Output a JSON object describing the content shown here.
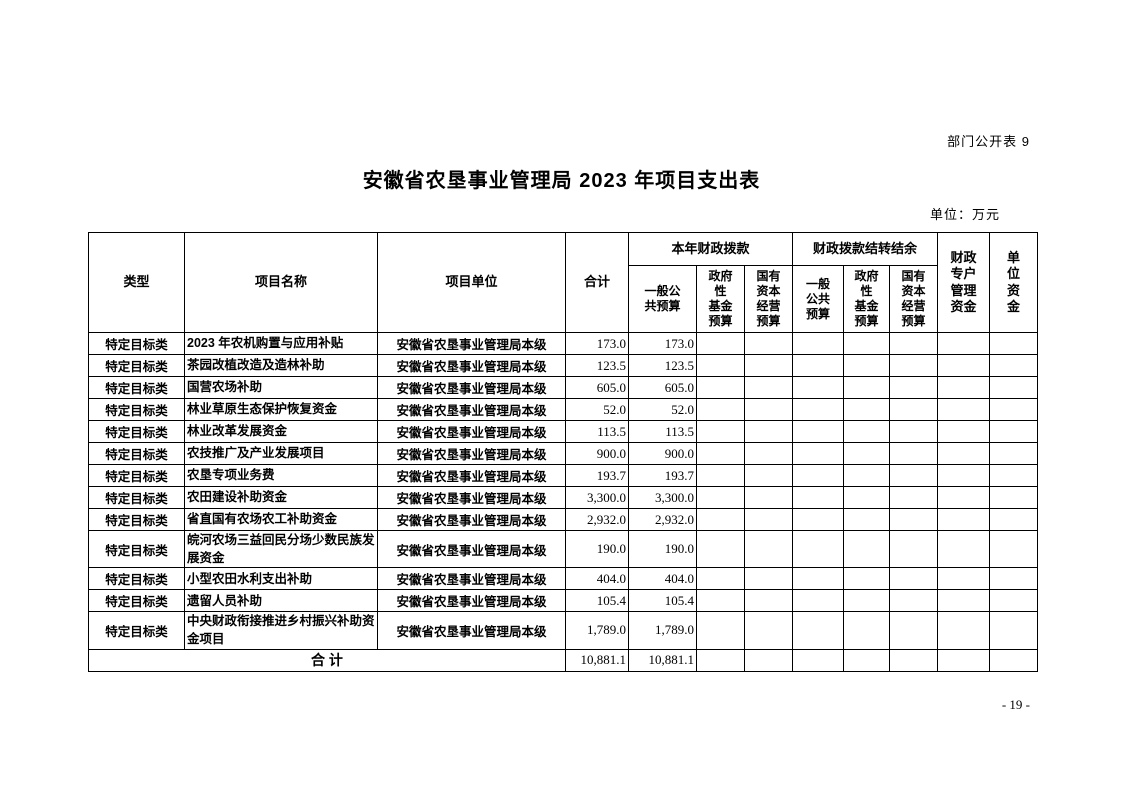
{
  "page": {
    "corner_label": "部门公开表 9",
    "title": "安徽省农垦事业管理局 2023 年项目支出表",
    "unit_note": "单位：万元",
    "page_number": "- 19 -"
  },
  "table": {
    "headers": {
      "type": "类型",
      "project_name": "项目名称",
      "project_unit": "项目单位",
      "total": "合计",
      "current_year_group": "本年财政拨款",
      "carryover_group": "财政拨款结转结余",
      "cy_general": "一般公\n共预算",
      "cy_gov_fund": "政府\n性\n基金\n预算",
      "cy_state_capital": "国有\n资本\n经营\n预算",
      "co_general": "一般\n公共\n预算",
      "co_gov_fund": "政府\n性\n基金\n预算",
      "co_state_capital": "国有\n资本\n经营\n预算",
      "special_account": "财政\n专户\n管理\n资金",
      "unit_funds": "单\n位\n资\n金"
    },
    "rows": [
      {
        "type": "特定目标类",
        "name": "2023 年农机购置与应用补贴",
        "unit": "安徽省农垦事业管理局本级",
        "total": "173.0",
        "cy_general": "173.0",
        "cy_gov_fund": "",
        "cy_state_capital": "",
        "co_general": "",
        "co_gov_fund": "",
        "co_state_capital": "",
        "special_account": "",
        "unit_funds": ""
      },
      {
        "type": "特定目标类",
        "name": "茶园改植改造及造林补助",
        "unit": "安徽省农垦事业管理局本级",
        "total": "123.5",
        "cy_general": "123.5",
        "cy_gov_fund": "",
        "cy_state_capital": "",
        "co_general": "",
        "co_gov_fund": "",
        "co_state_capital": "",
        "special_account": "",
        "unit_funds": ""
      },
      {
        "type": "特定目标类",
        "name": "国营农场补助",
        "unit": "安徽省农垦事业管理局本级",
        "total": "605.0",
        "cy_general": "605.0",
        "cy_gov_fund": "",
        "cy_state_capital": "",
        "co_general": "",
        "co_gov_fund": "",
        "co_state_capital": "",
        "special_account": "",
        "unit_funds": ""
      },
      {
        "type": "特定目标类",
        "name": "林业草原生态保护恢复资金",
        "unit": "安徽省农垦事业管理局本级",
        "total": "52.0",
        "cy_general": "52.0",
        "cy_gov_fund": "",
        "cy_state_capital": "",
        "co_general": "",
        "co_gov_fund": "",
        "co_state_capital": "",
        "special_account": "",
        "unit_funds": ""
      },
      {
        "type": "特定目标类",
        "name": "林业改革发展资金",
        "unit": "安徽省农垦事业管理局本级",
        "total": "113.5",
        "cy_general": "113.5",
        "cy_gov_fund": "",
        "cy_state_capital": "",
        "co_general": "",
        "co_gov_fund": "",
        "co_state_capital": "",
        "special_account": "",
        "unit_funds": ""
      },
      {
        "type": "特定目标类",
        "name": "农技推广及产业发展项目",
        "unit": "安徽省农垦事业管理局本级",
        "total": "900.0",
        "cy_general": "900.0",
        "cy_gov_fund": "",
        "cy_state_capital": "",
        "co_general": "",
        "co_gov_fund": "",
        "co_state_capital": "",
        "special_account": "",
        "unit_funds": ""
      },
      {
        "type": "特定目标类",
        "name": "农垦专项业务费",
        "unit": "安徽省农垦事业管理局本级",
        "total": "193.7",
        "cy_general": "193.7",
        "cy_gov_fund": "",
        "cy_state_capital": "",
        "co_general": "",
        "co_gov_fund": "",
        "co_state_capital": "",
        "special_account": "",
        "unit_funds": ""
      },
      {
        "type": "特定目标类",
        "name": "农田建设补助资金",
        "unit": "安徽省农垦事业管理局本级",
        "total": "3,300.0",
        "cy_general": "3,300.0",
        "cy_gov_fund": "",
        "cy_state_capital": "",
        "co_general": "",
        "co_gov_fund": "",
        "co_state_capital": "",
        "special_account": "",
        "unit_funds": ""
      },
      {
        "type": "特定目标类",
        "name": "省直国有农场农工补助资金",
        "unit": "安徽省农垦事业管理局本级",
        "total": "2,932.0",
        "cy_general": "2,932.0",
        "cy_gov_fund": "",
        "cy_state_capital": "",
        "co_general": "",
        "co_gov_fund": "",
        "co_state_capital": "",
        "special_account": "",
        "unit_funds": ""
      },
      {
        "type": "特定目标类",
        "name": "皖河农场三益回民分场少数民族发展资金",
        "unit": "安徽省农垦事业管理局本级",
        "total": "190.0",
        "cy_general": "190.0",
        "cy_gov_fund": "",
        "cy_state_capital": "",
        "co_general": "",
        "co_gov_fund": "",
        "co_state_capital": "",
        "special_account": "",
        "unit_funds": ""
      },
      {
        "type": "特定目标类",
        "name": "小型农田水利支出补助",
        "unit": "安徽省农垦事业管理局本级",
        "total": "404.0",
        "cy_general": "404.0",
        "cy_gov_fund": "",
        "cy_state_capital": "",
        "co_general": "",
        "co_gov_fund": "",
        "co_state_capital": "",
        "special_account": "",
        "unit_funds": ""
      },
      {
        "type": "特定目标类",
        "name": "遗留人员补助",
        "unit": "安徽省农垦事业管理局本级",
        "total": "105.4",
        "cy_general": "105.4",
        "cy_gov_fund": "",
        "cy_state_capital": "",
        "co_general": "",
        "co_gov_fund": "",
        "co_state_capital": "",
        "special_account": "",
        "unit_funds": ""
      },
      {
        "type": "特定目标类",
        "name": "中央财政衔接推进乡村振兴补助资金项目",
        "unit": "安徽省农垦事业管理局本级",
        "total": "1,789.0",
        "cy_general": "1,789.0",
        "cy_gov_fund": "",
        "cy_state_capital": "",
        "co_general": "",
        "co_gov_fund": "",
        "co_state_capital": "",
        "special_account": "",
        "unit_funds": ""
      }
    ],
    "total_row": {
      "label": "合 计",
      "total": "10,881.1",
      "cy_general": "10,881.1",
      "cy_gov_fund": "",
      "cy_state_capital": "",
      "co_general": "",
      "co_gov_fund": "",
      "co_state_capital": "",
      "special_account": "",
      "unit_funds": ""
    }
  }
}
